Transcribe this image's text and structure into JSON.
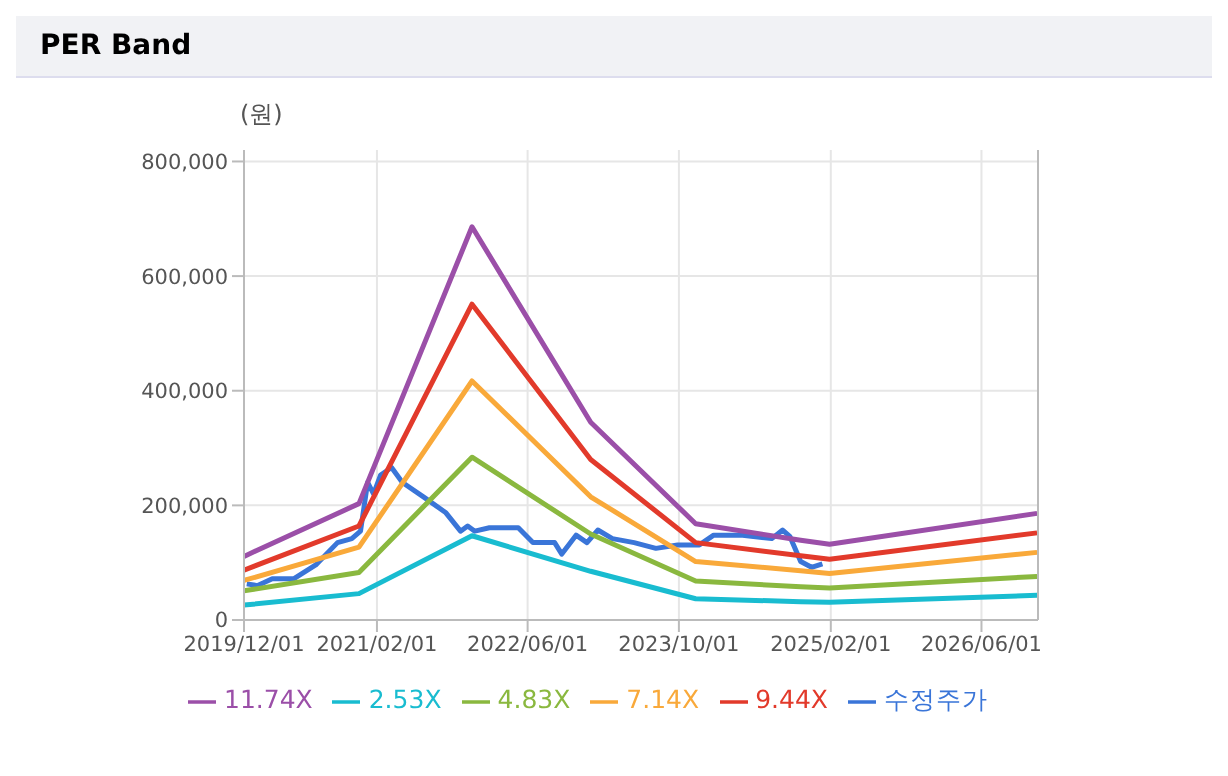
{
  "chart_data": {
    "type": "line",
    "title": "PER Band",
    "ylabel": "(원)",
    "x": [
      "2019-12-01",
      "2020-12-05",
      "2021-12-04",
      "2022-12-21",
      "2023-11-24",
      "2024-10-27",
      "2025-01-28",
      "2026-11-27"
    ],
    "xlim": [
      "2019-12-01",
      "2026-11-30"
    ],
    "xticks": [
      {
        "value": "2019-12-01",
        "label": "2019/12/01"
      },
      {
        "value": "2021-02-01",
        "label": "2021/02/01"
      },
      {
        "value": "2022-06-01",
        "label": "2022/06/01"
      },
      {
        "value": "2023-10-01",
        "label": "2023/10/01"
      },
      {
        "value": "2025-02-01",
        "label": "2025/02/01"
      },
      {
        "value": "2026-06-01",
        "label": "2026/06/01"
      }
    ],
    "ylim": [
      0,
      820000
    ],
    "yticks": [
      {
        "value": 0,
        "label": "0"
      },
      {
        "value": 200000,
        "label": "200,000"
      },
      {
        "value": 400000,
        "label": "400,000"
      },
      {
        "value": 600000,
        "label": "600,000"
      },
      {
        "value": 800000,
        "label": "800,000"
      }
    ],
    "grid": true,
    "legend": "bottom",
    "marker": "none",
    "line_style": "solid",
    "series": [
      {
        "name": "수정주가",
        "color": "#3a75d8",
        "x": [
          "2019-12-10",
          "2020-01-14",
          "2020-03-01",
          "2020-05-10",
          "2020-07-19",
          "2020-09-27",
          "2020-11-12",
          "2020-12-10",
          "2021-01-02",
          "2021-01-21",
          "2021-02-13",
          "2021-03-20",
          "2021-04-24",
          "2021-07-03",
          "2021-09-11",
          "2021-10-28",
          "2021-11-20",
          "2021-12-13",
          "2022-01-29",
          "2022-05-02",
          "2022-06-18",
          "2022-08-27",
          "2022-09-19",
          "2022-11-04",
          "2022-12-09",
          "2023-01-13",
          "2023-03-01",
          "2023-05-10",
          "2023-07-19",
          "2023-09-27",
          "2023-12-06",
          "2024-01-21",
          "2024-04-23",
          "2024-07-26",
          "2024-08-30",
          "2024-09-22",
          "2024-10-27",
          "2024-12-01",
          "2025-01-05"
        ],
        "values": [
          63000,
          60000,
          72000,
          72000,
          96000,
          135000,
          142000,
          155000,
          240000,
          220000,
          253000,
          266000,
          240000,
          214000,
          187000,
          155000,
          164000,
          155000,
          161000,
          161000,
          135000,
          135000,
          115000,
          148000,
          135000,
          157000,
          142000,
          135000,
          125000,
          131000,
          131000,
          148000,
          148000,
          142000,
          157000,
          146000,
          102000,
          92000,
          98000
        ]
      },
      {
        "name": "2.53X",
        "color": "#19bcd0",
        "values": [
          26000,
          46000,
          147000,
          85000,
          37000,
          32000,
          31000,
          43000
        ]
      },
      {
        "name": "4.83X",
        "color": "#8ab83f",
        "values": [
          51000,
          83000,
          284000,
          150000,
          68000,
          58000,
          56000,
          76000
        ]
      },
      {
        "name": "7.14X",
        "color": "#f9a93a",
        "values": [
          69000,
          127000,
          417000,
          215000,
          102000,
          86000,
          81000,
          118000
        ]
      },
      {
        "name": "9.44X",
        "color": "#e23a2b",
        "values": [
          87000,
          164000,
          551000,
          280000,
          135000,
          112000,
          106000,
          152000
        ]
      },
      {
        "name": "11.74X",
        "color": "#9b4fa8",
        "values": [
          111000,
          203000,
          686000,
          345000,
          168000,
          139000,
          132000,
          186000
        ]
      }
    ]
  }
}
